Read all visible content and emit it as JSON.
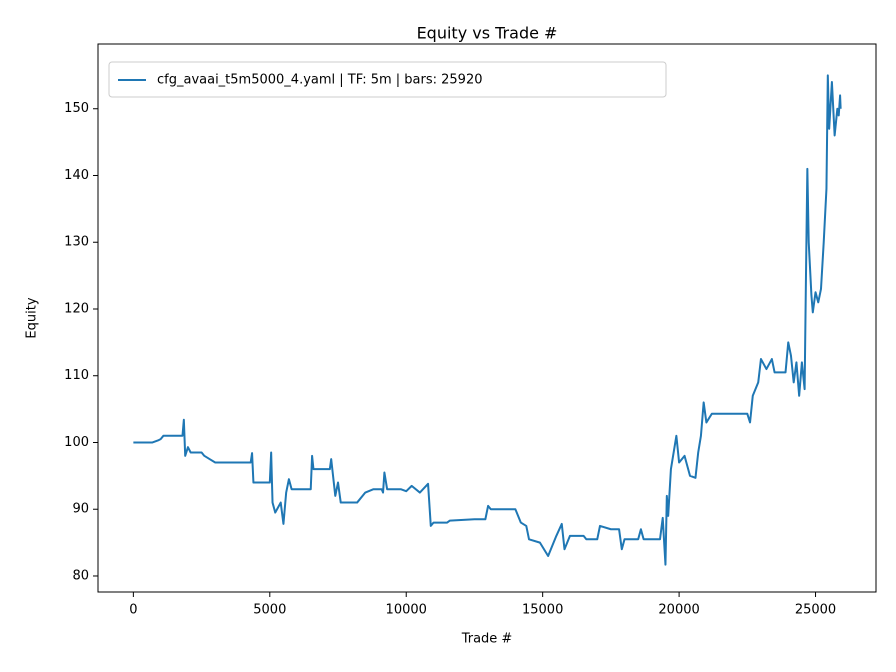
{
  "chart_data": {
    "type": "line",
    "title": "Equity vs Trade #",
    "x_label": "Trade #",
    "y_label": "Equity",
    "xlim": [
      -1296,
      27216
    ],
    "ylim": [
      77.6,
      159.7
    ],
    "xticks": [
      0,
      5000,
      10000,
      15000,
      20000,
      25000
    ],
    "yticks": [
      80,
      90,
      100,
      110,
      120,
      130,
      140,
      150
    ],
    "legend": "upper left",
    "series": [
      {
        "name": "cfg_avaai_t5m5000_4.yaml | TF: 5m | bars: 25920",
        "color": "#1f77b4",
        "x": [
          0,
          700,
          900,
          1000,
          1100,
          1800,
          1850,
          1900,
          2000,
          2100,
          2500,
          2600,
          2800,
          3000,
          4300,
          4350,
          4400,
          4500,
          5000,
          5050,
          5100,
          5200,
          5400,
          5500,
          5600,
          5700,
          5800,
          6500,
          6550,
          6600,
          7200,
          7250,
          7400,
          7500,
          7600,
          8200,
          8500,
          8800,
          9100,
          9150,
          9200,
          9300,
          9800,
          10000,
          10200,
          10500,
          10800,
          10900,
          11000,
          11500,
          11600,
          12500,
          12900,
          13000,
          13100,
          14000,
          14200,
          14400,
          14500,
          14900,
          15200,
          15500,
          15700,
          15800,
          16000,
          16500,
          16600,
          17000,
          17100,
          17500,
          17800,
          17900,
          18000,
          18500,
          18600,
          18700,
          19300,
          19400,
          19500,
          19550,
          19600,
          19700,
          19900,
          20000,
          20200,
          20400,
          20600,
          20700,
          20800,
          20900,
          21000,
          21200,
          22500,
          22600,
          22700,
          22900,
          23000,
          23200,
          23400,
          23500,
          23900,
          24000,
          24100,
          24200,
          24300,
          24400,
          24500,
          24600,
          24650,
          24700,
          24750,
          24850,
          24900,
          25000,
          25100,
          25200,
          25300,
          25400,
          25450,
          25500,
          25600,
          25700,
          25800,
          25850,
          25900,
          25920
        ],
        "values": [
          100,
          100,
          100.3,
          100.5,
          101,
          101,
          103.4,
          98,
          99.3,
          98.5,
          98.5,
          98,
          97.5,
          97,
          97,
          98.4,
          94,
          94,
          94,
          98.5,
          91,
          89.5,
          91,
          87.8,
          92.5,
          94.5,
          93,
          93,
          98,
          96,
          96,
          97.5,
          92,
          94,
          91,
          91,
          92.5,
          93,
          93,
          92.5,
          95.5,
          93,
          93,
          92.7,
          93.5,
          92.5,
          93.8,
          87.5,
          88,
          88,
          88.3,
          88.5,
          88.5,
          90.5,
          90,
          90,
          88,
          87.5,
          85.5,
          85,
          83,
          86,
          87.8,
          84,
          86,
          86,
          85.5,
          85.5,
          87.5,
          87,
          87,
          84,
          85.5,
          85.5,
          87,
          85.5,
          85.5,
          88.7,
          81.7,
          92,
          89,
          96,
          101,
          97,
          98,
          95,
          94.7,
          98.5,
          101,
          106,
          103,
          104.3,
          104.3,
          103,
          107,
          109,
          112.5,
          111,
          112.5,
          110.5,
          110.5,
          115,
          113,
          109,
          112,
          107,
          112,
          108,
          125,
          141,
          130,
          122,
          119.5,
          122.5,
          121,
          123,
          130,
          138,
          155,
          147,
          154,
          146,
          150,
          149,
          152,
          150
        ]
      }
    ]
  }
}
